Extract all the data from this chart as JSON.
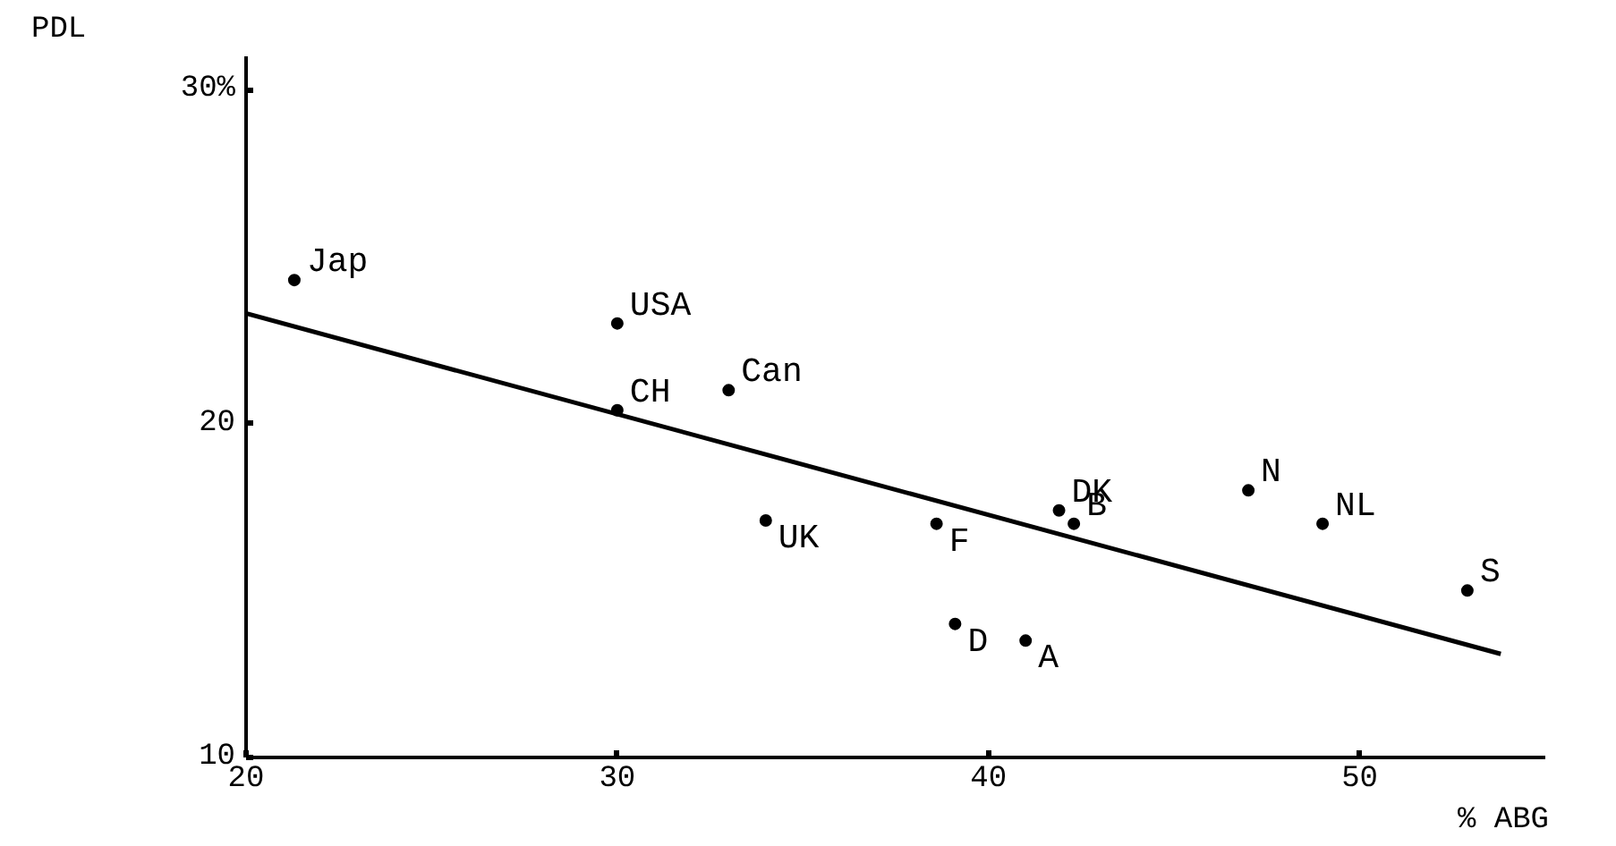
{
  "chart_data": {
    "type": "scatter",
    "xlabel": "% ABG",
    "ylabel": "PDL",
    "grid": false,
    "xlim": [
      20,
      55
    ],
    "ylim": [
      10,
      31
    ],
    "xticks": [
      20,
      30,
      40,
      50
    ],
    "yticks": [
      10,
      20,
      {
        "value": 30,
        "label": "30%"
      }
    ],
    "series": [
      {
        "marker": "circle",
        "color": "#000000",
        "x": [
          21.3,
          30,
          33,
          30,
          34,
          38.6,
          41.9,
          42.3,
          47,
          49,
          52.9,
          39.1,
          41
        ],
        "values": [
          24.3,
          23,
          21,
          20.4,
          17.1,
          17,
          17.4,
          17,
          18,
          17,
          15,
          14,
          13.5
        ]
      },
      {
        "type": "line",
        "color": "#000000",
        "x": [
          20,
          53.8
        ],
        "values": [
          23.3,
          13.1
        ]
      }
    ],
    "annotations": [
      {
        "text": "Jap",
        "x": 21.3,
        "y": 24.3
      },
      {
        "text": "USA",
        "x": 30,
        "y": 23
      },
      {
        "text": "Can",
        "x": 33,
        "y": 21
      },
      {
        "text": "CH",
        "x": 30,
        "y": 20.4
      },
      {
        "text": "UK",
        "x": 34,
        "y": 17.1
      },
      {
        "text": "F",
        "x": 38.6,
        "y": 17
      },
      {
        "text": "DK",
        "x": 41.9,
        "y": 17.4
      },
      {
        "text": "B",
        "x": 42.3,
        "y": 17
      },
      {
        "text": "N",
        "x": 47,
        "y": 18
      },
      {
        "text": "NL",
        "x": 49,
        "y": 17
      },
      {
        "text": "S",
        "x": 52.9,
        "y": 15
      },
      {
        "text": "D",
        "x": 39.1,
        "y": 14
      },
      {
        "text": "A",
        "x": 41,
        "y": 13.5
      }
    ]
  }
}
